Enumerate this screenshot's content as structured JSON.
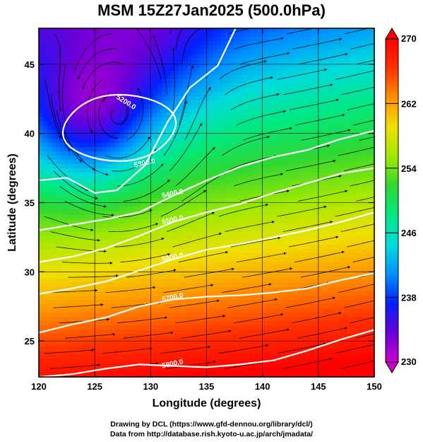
{
  "title": "MSM 15Z27Jan2025 (500.0hPa)",
  "footer": {
    "line1": "Drawing by DCL (https://www.gfd-dennou.org/library/dcl/)",
    "line2": "Data from http://database.rish.kyoto-u.ac.jp/arch/jmadata/"
  },
  "chart_data": {
    "type": "heatmap",
    "title": "MSM 15Z27Jan2025 (500.0hPa)",
    "xlabel": "Longitude (degrees)",
    "ylabel": "Latitude  (degrees)",
    "xlim": [
      120,
      150
    ],
    "ylim": [
      22.4,
      47.6
    ],
    "x_ticks": [
      "120",
      "125",
      "130",
      "135",
      "140",
      "145",
      "150"
    ],
    "y_ticks": [
      "25",
      "30",
      "35",
      "40",
      "45"
    ],
    "grid": true,
    "colorbar": {
      "min": 230,
      "max": 270,
      "tick_labels": [
        "230",
        "238",
        "246",
        "254",
        "262",
        "270"
      ],
      "colors": [
        "#cc00cc",
        "#6a00d8",
        "#0020ff",
        "#0090ff",
        "#00dcdc",
        "#00e880",
        "#30d830",
        "#a0e800",
        "#f0e000",
        "#ff9000",
        "#ff3000",
        "#ff0000"
      ]
    },
    "contours": [
      {
        "label": "5200.0",
        "shape": "closed",
        "center": [
          127.2,
          40.4
        ],
        "radii": [
          5.0,
          2.4
        ]
      },
      {
        "label": "5300.0",
        "points": [
          [
            120,
            36.6
          ],
          [
            122.5,
            36.8
          ],
          [
            125,
            35.7
          ],
          [
            127,
            35.9
          ],
          [
            129.5,
            37.7
          ],
          [
            131.5,
            40.8
          ],
          [
            133.5,
            43.3
          ],
          [
            136,
            44.9
          ],
          [
            137.6,
            47.6
          ]
        ]
      },
      {
        "label": "5400.0",
        "points": [
          [
            120,
            33.0
          ],
          [
            123,
            33.4
          ],
          [
            126,
            33.8
          ],
          [
            129,
            34.3
          ],
          [
            132,
            35.5
          ],
          [
            135,
            36.6
          ],
          [
            138,
            37.6
          ],
          [
            141,
            38.3
          ],
          [
            144,
            38.8
          ],
          [
            147,
            39.6
          ],
          [
            150,
            40.2
          ]
        ]
      },
      {
        "label": "5500.0",
        "points": [
          [
            120,
            30.7
          ],
          [
            123,
            31.1
          ],
          [
            126,
            31.7
          ],
          [
            129,
            32.6
          ],
          [
            132,
            33.6
          ],
          [
            135,
            34.3
          ],
          [
            138,
            34.9
          ],
          [
            141,
            35.7
          ],
          [
            144,
            36.4
          ],
          [
            147,
            37.1
          ],
          [
            150,
            37.5
          ]
        ]
      },
      {
        "label": "5600.0",
        "points": [
          [
            120,
            28.4
          ],
          [
            123,
            28.8
          ],
          [
            126,
            29.3
          ],
          [
            129,
            30.1
          ],
          [
            132,
            30.9
          ],
          [
            135,
            31.6
          ],
          [
            138,
            32.0
          ],
          [
            141,
            32.5
          ],
          [
            144,
            33.0
          ],
          [
            147,
            33.6
          ],
          [
            150,
            34.3
          ]
        ]
      },
      {
        "label": "5700.0",
        "points": [
          [
            120,
            25.6
          ],
          [
            123,
            26.2
          ],
          [
            126,
            26.7
          ],
          [
            129,
            27.5
          ],
          [
            132,
            28.0
          ],
          [
            135,
            28.2
          ],
          [
            138,
            28.3
          ],
          [
            141,
            28.5
          ],
          [
            144,
            28.8
          ],
          [
            147,
            29.4
          ],
          [
            150,
            29.9
          ]
        ]
      },
      {
        "label": "5800.0",
        "points": [
          [
            120,
            22.4
          ],
          [
            123,
            22.6
          ],
          [
            126,
            23.0
          ],
          [
            129,
            23.3
          ],
          [
            132,
            23.2
          ],
          [
            135,
            23.1
          ],
          [
            138,
            23.3
          ],
          [
            141,
            23.6
          ],
          [
            144,
            24.3
          ],
          [
            147,
            25.1
          ],
          [
            150,
            25.8
          ]
        ]
      }
    ]
  }
}
